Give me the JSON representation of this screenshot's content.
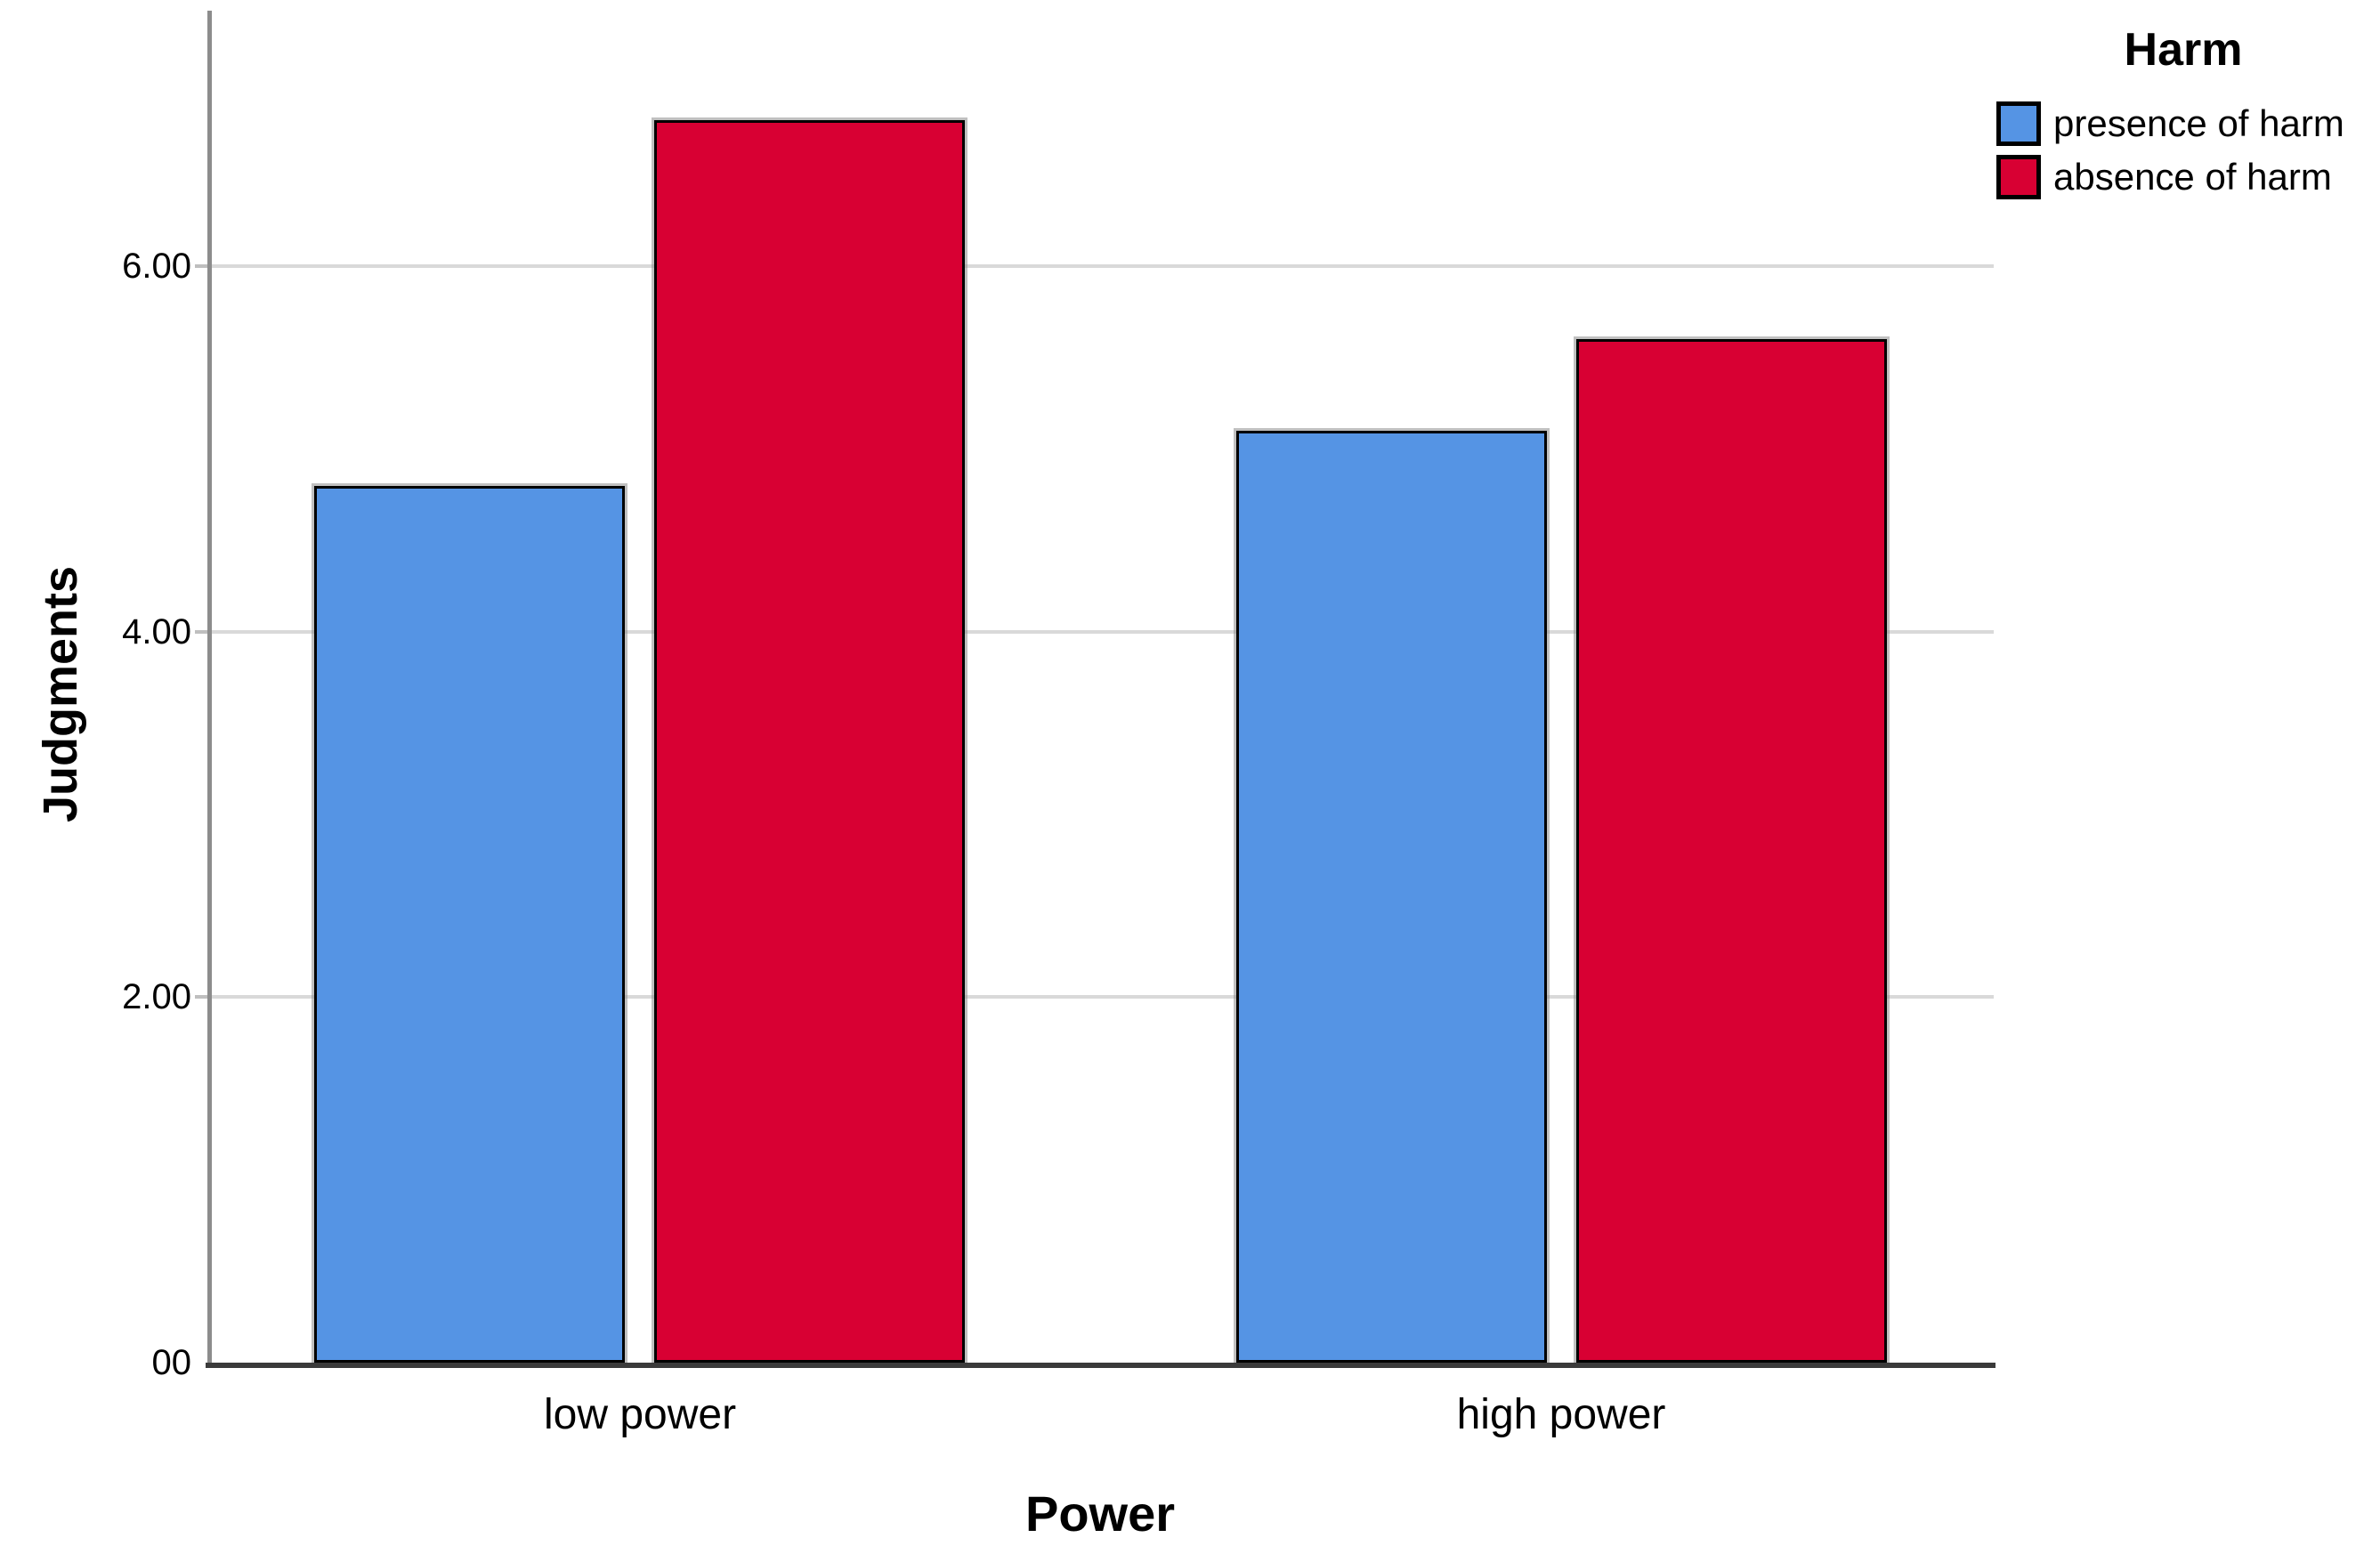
{
  "chart_data": {
    "type": "bar",
    "categories": [
      "low power",
      "high power"
    ],
    "series": [
      {
        "name": "presence of harm",
        "color": "#5594E4",
        "values": [
          4.8,
          5.1
        ]
      },
      {
        "name": "absence of harm",
        "color": "#D80033",
        "values": [
          6.8,
          5.6
        ]
      }
    ],
    "xlabel": "Power",
    "ylabel": "Judgments",
    "ylim": [
      0,
      7.4
    ],
    "yticks": [
      {
        "value": 0,
        "label": "00"
      },
      {
        "value": 2,
        "label": "2.00"
      },
      {
        "value": 4,
        "label": "4.00"
      },
      {
        "value": 6,
        "label": "6.00"
      }
    ],
    "grid": "horizontal",
    "legend": {
      "title": "Harm",
      "position": "top-right"
    }
  },
  "colors": {
    "bar_blue": "#5594E4",
    "bar_red": "#D80033",
    "gridline": "#D9D9D9",
    "y_axis_line": "#8C8C8C",
    "x_axis_line": "#3A3A3A",
    "tick_mark": "#BFBFBF",
    "text": "#000000"
  }
}
